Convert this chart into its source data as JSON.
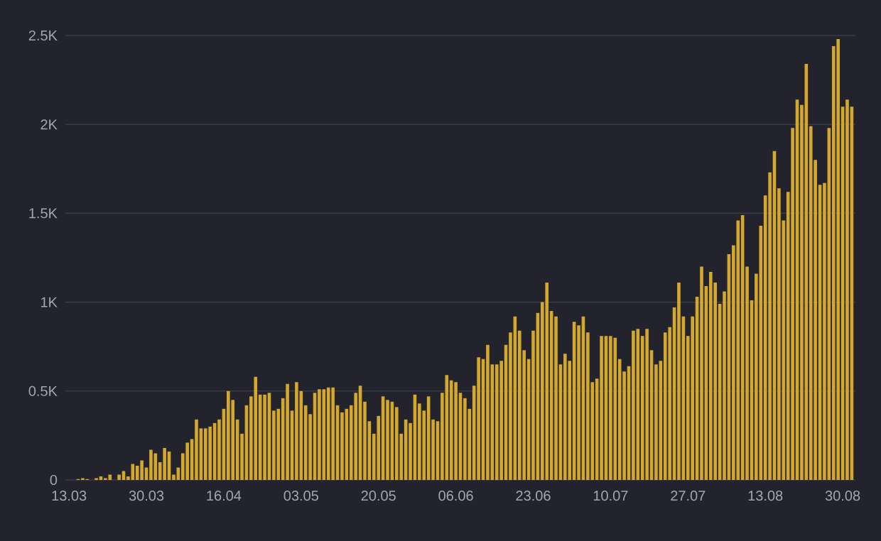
{
  "chart_data": {
    "type": "bar",
    "color": "#d4a82a",
    "grid": "y",
    "ylim": [
      0,
      2500
    ],
    "yticks": [
      0,
      {
        "value": 500,
        "label": "0.5K"
      },
      {
        "value": 1000,
        "label": "1K"
      },
      {
        "value": 1500,
        "label": "1.5K"
      },
      {
        "value": 2000,
        "label": "2K"
      },
      {
        "value": 2500,
        "label": "2.5K"
      }
    ],
    "categories": [
      "13.03",
      null,
      null,
      null,
      null,
      null,
      null,
      null,
      null,
      null,
      null,
      null,
      null,
      null,
      null,
      null,
      null,
      "30.03",
      null,
      null,
      null,
      null,
      null,
      null,
      null,
      null,
      null,
      null,
      null,
      null,
      null,
      null,
      null,
      null,
      "16.04",
      null,
      null,
      null,
      null,
      null,
      null,
      null,
      null,
      null,
      null,
      null,
      null,
      null,
      null,
      null,
      null,
      "03.05",
      null,
      null,
      null,
      null,
      null,
      null,
      null,
      null,
      null,
      null,
      null,
      null,
      null,
      null,
      null,
      null,
      "20.05",
      null,
      null,
      null,
      null,
      null,
      null,
      null,
      null,
      null,
      null,
      null,
      null,
      null,
      null,
      null,
      null,
      "06.06",
      null,
      null,
      null,
      null,
      null,
      null,
      null,
      null,
      null,
      null,
      null,
      null,
      null,
      null,
      null,
      null,
      "23.06",
      null,
      null,
      null,
      null,
      null,
      null,
      null,
      null,
      null,
      null,
      null,
      null,
      null,
      null,
      null,
      null,
      "10.07",
      null,
      null,
      null,
      null,
      null,
      null,
      null,
      null,
      null,
      null,
      null,
      null,
      null,
      null,
      null,
      null,
      "27.07",
      null,
      null,
      null,
      null,
      null,
      null,
      null,
      null,
      null,
      null,
      null,
      null,
      null,
      null,
      null,
      null,
      "13.08",
      null,
      null,
      null,
      null,
      null,
      null,
      null,
      null,
      null,
      null,
      null,
      null,
      null,
      null,
      null,
      null,
      "30.08",
      null,
      null
    ],
    "values": [
      0,
      0,
      5,
      10,
      5,
      0,
      10,
      20,
      10,
      30,
      0,
      30,
      50,
      20,
      90,
      80,
      110,
      70,
      170,
      150,
      100,
      180,
      160,
      30,
      70,
      150,
      210,
      230,
      340,
      290,
      290,
      300,
      320,
      340,
      400,
      500,
      450,
      340,
      260,
      420,
      470,
      580,
      480,
      480,
      490,
      390,
      400,
      460,
      540,
      390,
      550,
      500,
      420,
      370,
      490,
      510,
      510,
      520,
      520,
      420,
      380,
      400,
      420,
      490,
      530,
      440,
      330,
      260,
      360,
      470,
      450,
      440,
      410,
      260,
      340,
      320,
      480,
      430,
      390,
      470,
      340,
      330,
      490,
      590,
      560,
      550,
      490,
      460,
      400,
      530,
      690,
      680,
      760,
      650,
      650,
      670,
      760,
      830,
      920,
      840,
      730,
      680,
      840,
      940,
      1000,
      1110,
      950,
      920,
      650,
      710,
      670,
      890,
      870,
      920,
      830,
      550,
      570,
      810,
      810,
      810,
      800,
      680,
      610,
      640,
      840,
      850,
      810,
      850,
      730,
      650,
      670,
      830,
      860,
      970,
      1110,
      920,
      810,
      920,
      1030,
      1200,
      1090,
      1170,
      1110,
      990,
      1060,
      1270,
      1320,
      1460,
      1490,
      1200,
      1010,
      1160,
      1430,
      1600,
      1730,
      1850,
      1640,
      1460,
      1620,
      1980,
      2140,
      2110,
      2340,
      1990,
      1800,
      1660,
      1670,
      1980,
      2440,
      2480,
      2100,
      2140,
      2100
    ]
  }
}
